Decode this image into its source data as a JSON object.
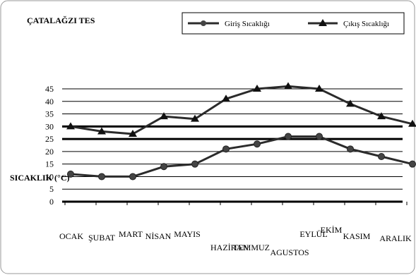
{
  "chart_data": {
    "type": "line",
    "title": "ÇATALAĞZI TES",
    "ylabel": "SICAKLIK (°C)",
    "xlabel": "",
    "categories": [
      "OCAK",
      "ŞUBAT",
      "MART",
      "NİSAN",
      "MAYIS",
      "HAZİRAN",
      "TEMMUZ",
      "AGUSTOS",
      "EYLÜL",
      "EKİM",
      "KASIM",
      "ARALIK"
    ],
    "y_ticks": [
      0,
      5,
      10,
      15,
      20,
      25,
      30,
      35,
      40,
      45
    ],
    "ylim": [
      0,
      45
    ],
    "grid": true,
    "legend_position": "top-right",
    "series": [
      {
        "name": "Giriş Sıcaklığı",
        "marker": "circle",
        "values": [
          11,
          10,
          10,
          14,
          15,
          21,
          23,
          26,
          26,
          21,
          18,
          15
        ]
      },
      {
        "name": "Çıkış Sıcaklığı",
        "marker": "triangle",
        "values": [
          30,
          28,
          27,
          34,
          33,
          41,
          45,
          46,
          45,
          39,
          34,
          31
        ]
      }
    ]
  }
}
